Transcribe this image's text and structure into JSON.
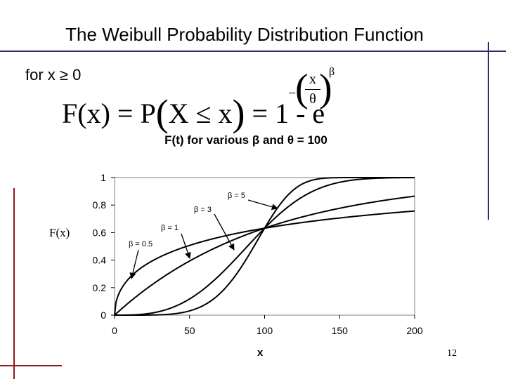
{
  "slide": {
    "title": "The Weibull Probability Distribution Function",
    "condition": "for x ≥ 0",
    "formula": {
      "lhs": "F(x) = P",
      "paren_open": "(",
      "inner": "X ≤ x",
      "paren_close": ")",
      "rhs": " = 1 - e",
      "exp_minus": "−",
      "exp_num": "x",
      "exp_den": "θ",
      "exp_pow": "β"
    },
    "page_number": "12"
  },
  "colors": {
    "accent_line": "#2c2e6a",
    "corner_line": "#8b1a1a",
    "curve": "#000000"
  },
  "chart_data": {
    "type": "line",
    "title": "F(t) for various  β  and  θ = 100",
    "xlabel": "x",
    "ylabel": "F(x)",
    "xlim": [
      0,
      200
    ],
    "ylim": [
      0,
      1
    ],
    "xticks": [
      "0",
      "50",
      "100",
      "150",
      "200"
    ],
    "yticks": [
      "0",
      "0.2",
      "0.4",
      "0.6",
      "0.8",
      "1"
    ],
    "grid": false,
    "theta": 100,
    "x": [
      0,
      1,
      5,
      10,
      20,
      30,
      40,
      50,
      60,
      70,
      80,
      90,
      100,
      110,
      120,
      130,
      140,
      150,
      160,
      170,
      180,
      190,
      200
    ],
    "series": [
      {
        "name": "β = 0.5",
        "beta": 0.5,
        "values": [
          0,
          0.095,
          0.2,
          0.271,
          0.361,
          0.422,
          0.469,
          0.507,
          0.539,
          0.567,
          0.591,
          0.613,
          0.632,
          0.65,
          0.666,
          0.68,
          0.694,
          0.706,
          0.718,
          0.729,
          0.739,
          0.748,
          0.757
        ]
      },
      {
        "name": "β = 1",
        "beta": 1,
        "values": [
          0,
          0.01,
          0.049,
          0.095,
          0.181,
          0.259,
          0.33,
          0.393,
          0.451,
          0.503,
          0.551,
          0.593,
          0.632,
          0.667,
          0.699,
          0.727,
          0.753,
          0.777,
          0.798,
          0.817,
          0.835,
          0.85,
          0.865
        ]
      },
      {
        "name": "β = 3",
        "beta": 3,
        "values": [
          0,
          0,
          0,
          0.001,
          0.008,
          0.027,
          0.062,
          0.118,
          0.194,
          0.29,
          0.401,
          0.518,
          0.632,
          0.736,
          0.822,
          0.889,
          0.936,
          0.966,
          0.983,
          0.993,
          0.997,
          0.999,
          1
        ]
      },
      {
        "name": "β = 5",
        "beta": 5,
        "values": [
          0,
          0,
          0,
          0,
          0,
          0.002,
          0.01,
          0.031,
          0.075,
          0.155,
          0.279,
          0.447,
          0.632,
          0.8,
          0.917,
          0.976,
          0.995,
          0.999,
          1,
          1,
          1,
          1,
          1
        ]
      }
    ],
    "annotations": [
      "β = 0.5",
      "β = 1",
      "β = 3",
      "β = 5"
    ]
  }
}
